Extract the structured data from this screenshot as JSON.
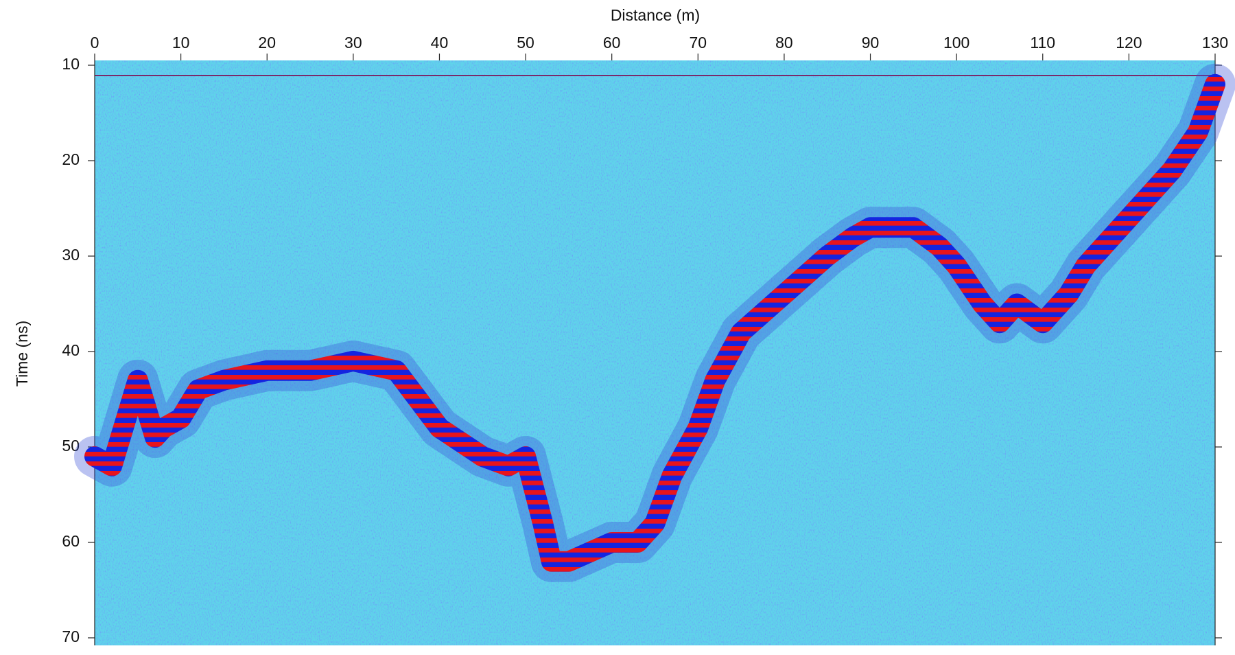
{
  "chart_data": {
    "type": "line",
    "xlabel": "Distance (m)",
    "ylabel": "Time (ns)",
    "x": [
      0,
      2,
      4,
      5,
      6,
      7,
      8,
      10,
      12,
      15,
      20,
      25,
      30,
      35,
      40,
      45,
      48,
      50,
      52,
      53,
      55,
      60,
      63,
      65,
      67,
      70,
      72,
      75,
      80,
      85,
      88,
      90,
      95,
      98,
      100,
      103,
      105,
      107,
      110,
      113,
      115,
      120,
      125,
      128,
      130
    ],
    "values": [
      51,
      52,
      46,
      43,
      46,
      49,
      48,
      47,
      44,
      43,
      42,
      42,
      41,
      42,
      48,
      51,
      52,
      51,
      58,
      62,
      62,
      60,
      60,
      58,
      53,
      48,
      43,
      38,
      34,
      30,
      28,
      27,
      27,
      29,
      31,
      35,
      37,
      35,
      37,
      34,
      31,
      26,
      21,
      17,
      12
    ],
    "color": "#e8141c",
    "xlim": [
      0,
      130
    ],
    "xticks": [
      0,
      10,
      20,
      30,
      40,
      50,
      60,
      70,
      80,
      90,
      100,
      110,
      120,
      130
    ],
    "ylim": [
      10,
      70
    ],
    "yticks": [
      10,
      20,
      30,
      40,
      50,
      60,
      70
    ]
  }
}
